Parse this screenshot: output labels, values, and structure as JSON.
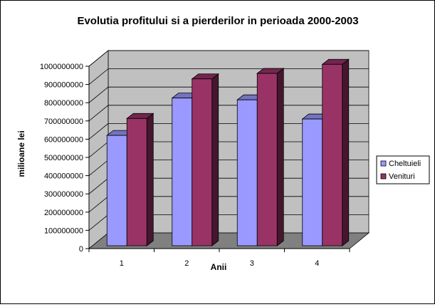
{
  "chart_data": {
    "type": "bar",
    "title": "Evolutia profitului si a pierderilor in perioada 2000-2003",
    "xlabel": "Anii",
    "ylabel": "milioane lei",
    "categories": [
      "1",
      "2",
      "3",
      "4"
    ],
    "y_ticks": [
      "0",
      "100000000",
      "200000000",
      "300000000",
      "400000000",
      "500000000",
      "600000000",
      "700000000",
      "800000000",
      "900000000",
      "1000000000"
    ],
    "ylim": [
      0,
      1000000000
    ],
    "grid": true,
    "legend_position": "right",
    "series": [
      {
        "name": "Cheltuieli",
        "values": [
          605000000,
          810000000,
          800000000,
          695000000
        ],
        "color": "#9999ff"
      },
      {
        "name": "Venituri",
        "values": [
          698000000,
          915000000,
          945000000,
          995000000
        ],
        "color": "#993366"
      }
    ]
  },
  "colors": {
    "plot_background": "#c0c0c0",
    "floor": "#808080",
    "gridline": "#000000"
  }
}
